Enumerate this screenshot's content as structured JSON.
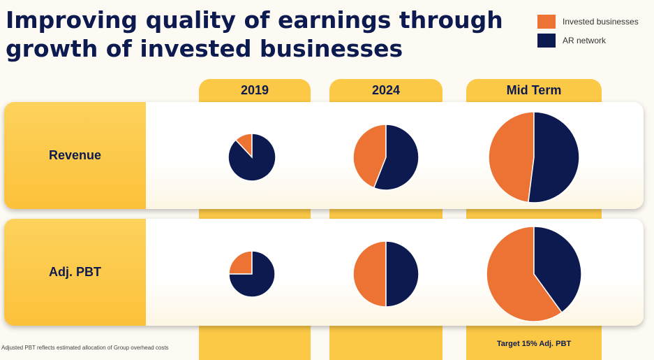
{
  "title": {
    "line1": "Improving quality of earnings through",
    "line2": "growth of invested businesses"
  },
  "colors": {
    "invested": "#ec7333",
    "ar_network": "#0d1a4f",
    "column_fill": "#fcc946",
    "title": "#0d1a4f"
  },
  "legend": [
    {
      "label": "Invested businesses",
      "color": "#ec7333"
    },
    {
      "label": "AR network",
      "color": "#0d1a4f"
    }
  ],
  "columns": [
    "2019",
    "2024",
    "Mid Term"
  ],
  "rows": [
    "Revenue",
    "Adj. PBT"
  ],
  "footnote": "Adjusted PBT reflects estimated allocation of Group overhead costs",
  "target_note": "Target 15% Adj. PBT",
  "chart_data": {
    "type": "pie",
    "series_names": [
      "Invested businesses",
      "AR network"
    ],
    "categories": [
      "2019",
      "2024",
      "Mid Term"
    ],
    "rows": [
      {
        "name": "Revenue",
        "pies": [
          {
            "category": "2019",
            "values": [
              12,
              88
            ]
          },
          {
            "category": "2024",
            "values": [
              44,
              56
            ]
          },
          {
            "category": "Mid Term",
            "values": [
              48,
              52
            ]
          }
        ]
      },
      {
        "name": "Adj. PBT",
        "pies": [
          {
            "category": "2019",
            "values": [
              25,
              75
            ]
          },
          {
            "category": "2024",
            "values": [
              50,
              50
            ]
          },
          {
            "category": "Mid Term",
            "values": [
              60,
              40
            ]
          }
        ]
      }
    ]
  }
}
